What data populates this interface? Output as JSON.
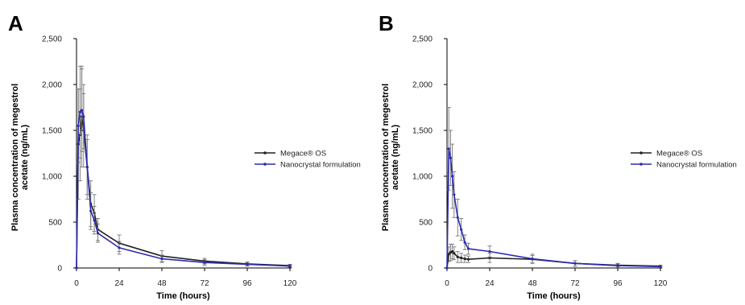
{
  "chart_data": [
    {
      "type": "line",
      "panel_label": "A",
      "xlabel": "Time (hours)",
      "ylabel_lines": [
        "Plasma concentration of megestrol",
        "acetate (ng/mL)"
      ],
      "xlim": [
        0,
        120
      ],
      "ylim": [
        0,
        2500
      ],
      "x_ticks": [
        0,
        24,
        48,
        72,
        96,
        120
      ],
      "y_ticks": [
        0,
        500,
        1000,
        1500,
        2000,
        2500
      ],
      "y_tick_labels": [
        "0",
        "500",
        "1,000",
        "1,500",
        "2,000",
        "2,500"
      ],
      "legend_position": "right",
      "series": [
        {
          "name": "Megace® OS",
          "color": "#222222",
          "x": [
            0,
            1,
            2,
            3,
            4,
            6,
            8,
            10,
            12,
            24,
            48,
            72,
            96,
            120
          ],
          "y": [
            0,
            1350,
            1450,
            1650,
            1500,
            1100,
            700,
            600,
            420,
            270,
            130,
            75,
            45,
            25
          ],
          "err": [
            0,
            600,
            500,
            550,
            400,
            350,
            250,
            200,
            120,
            90,
            60,
            30,
            20,
            15
          ]
        },
        {
          "name": "Nanocrystal formulation",
          "color": "#2b2bb0",
          "x": [
            0,
            1,
            2,
            3,
            4,
            6,
            8,
            10,
            12,
            24,
            48,
            72,
            96,
            120
          ],
          "y": [
            0,
            1550,
            1700,
            1720,
            1650,
            1100,
            620,
            520,
            380,
            220,
            100,
            60,
            40,
            20
          ],
          "err": [
            0,
            400,
            500,
            450,
            350,
            300,
            200,
            150,
            100,
            70,
            40,
            30,
            20,
            10
          ]
        }
      ]
    },
    {
      "type": "line",
      "panel_label": "B",
      "xlabel": "Time (hours)",
      "ylabel_lines": [
        "Plasma concentration of megestrol",
        "acetate (ng/mL)"
      ],
      "xlim": [
        0,
        120
      ],
      "ylim": [
        0,
        2500
      ],
      "x_ticks": [
        0,
        24,
        48,
        72,
        96,
        120
      ],
      "y_ticks": [
        0,
        500,
        1000,
        1500,
        2000,
        2500
      ],
      "y_tick_labels": [
        "0",
        "500",
        "1,000",
        "1,500",
        "2,000",
        "2,500"
      ],
      "legend_position": "right",
      "series": [
        {
          "name": "Megace®  OS",
          "color": "#222222",
          "x": [
            0,
            1,
            2,
            3,
            4,
            6,
            8,
            10,
            12,
            24,
            48,
            72,
            96,
            120
          ],
          "y": [
            0,
            150,
            170,
            180,
            160,
            120,
            110,
            100,
            95,
            110,
            95,
            50,
            30,
            20
          ],
          "err": [
            0,
            80,
            90,
            80,
            70,
            60,
            50,
            40,
            35,
            50,
            40,
            30,
            20,
            10
          ]
        },
        {
          "name": "Nanocrystal formulation",
          "color": "#2b2bb0",
          "x": [
            0,
            1,
            2,
            3,
            4,
            6,
            8,
            10,
            12,
            24,
            48,
            72,
            96,
            120
          ],
          "y": [
            0,
            1300,
            1200,
            1000,
            800,
            550,
            420,
            280,
            210,
            180,
            100,
            50,
            25,
            15
          ],
          "err": [
            0,
            450,
            300,
            350,
            250,
            200,
            120,
            80,
            60,
            60,
            50,
            30,
            20,
            10
          ]
        }
      ]
    }
  ]
}
